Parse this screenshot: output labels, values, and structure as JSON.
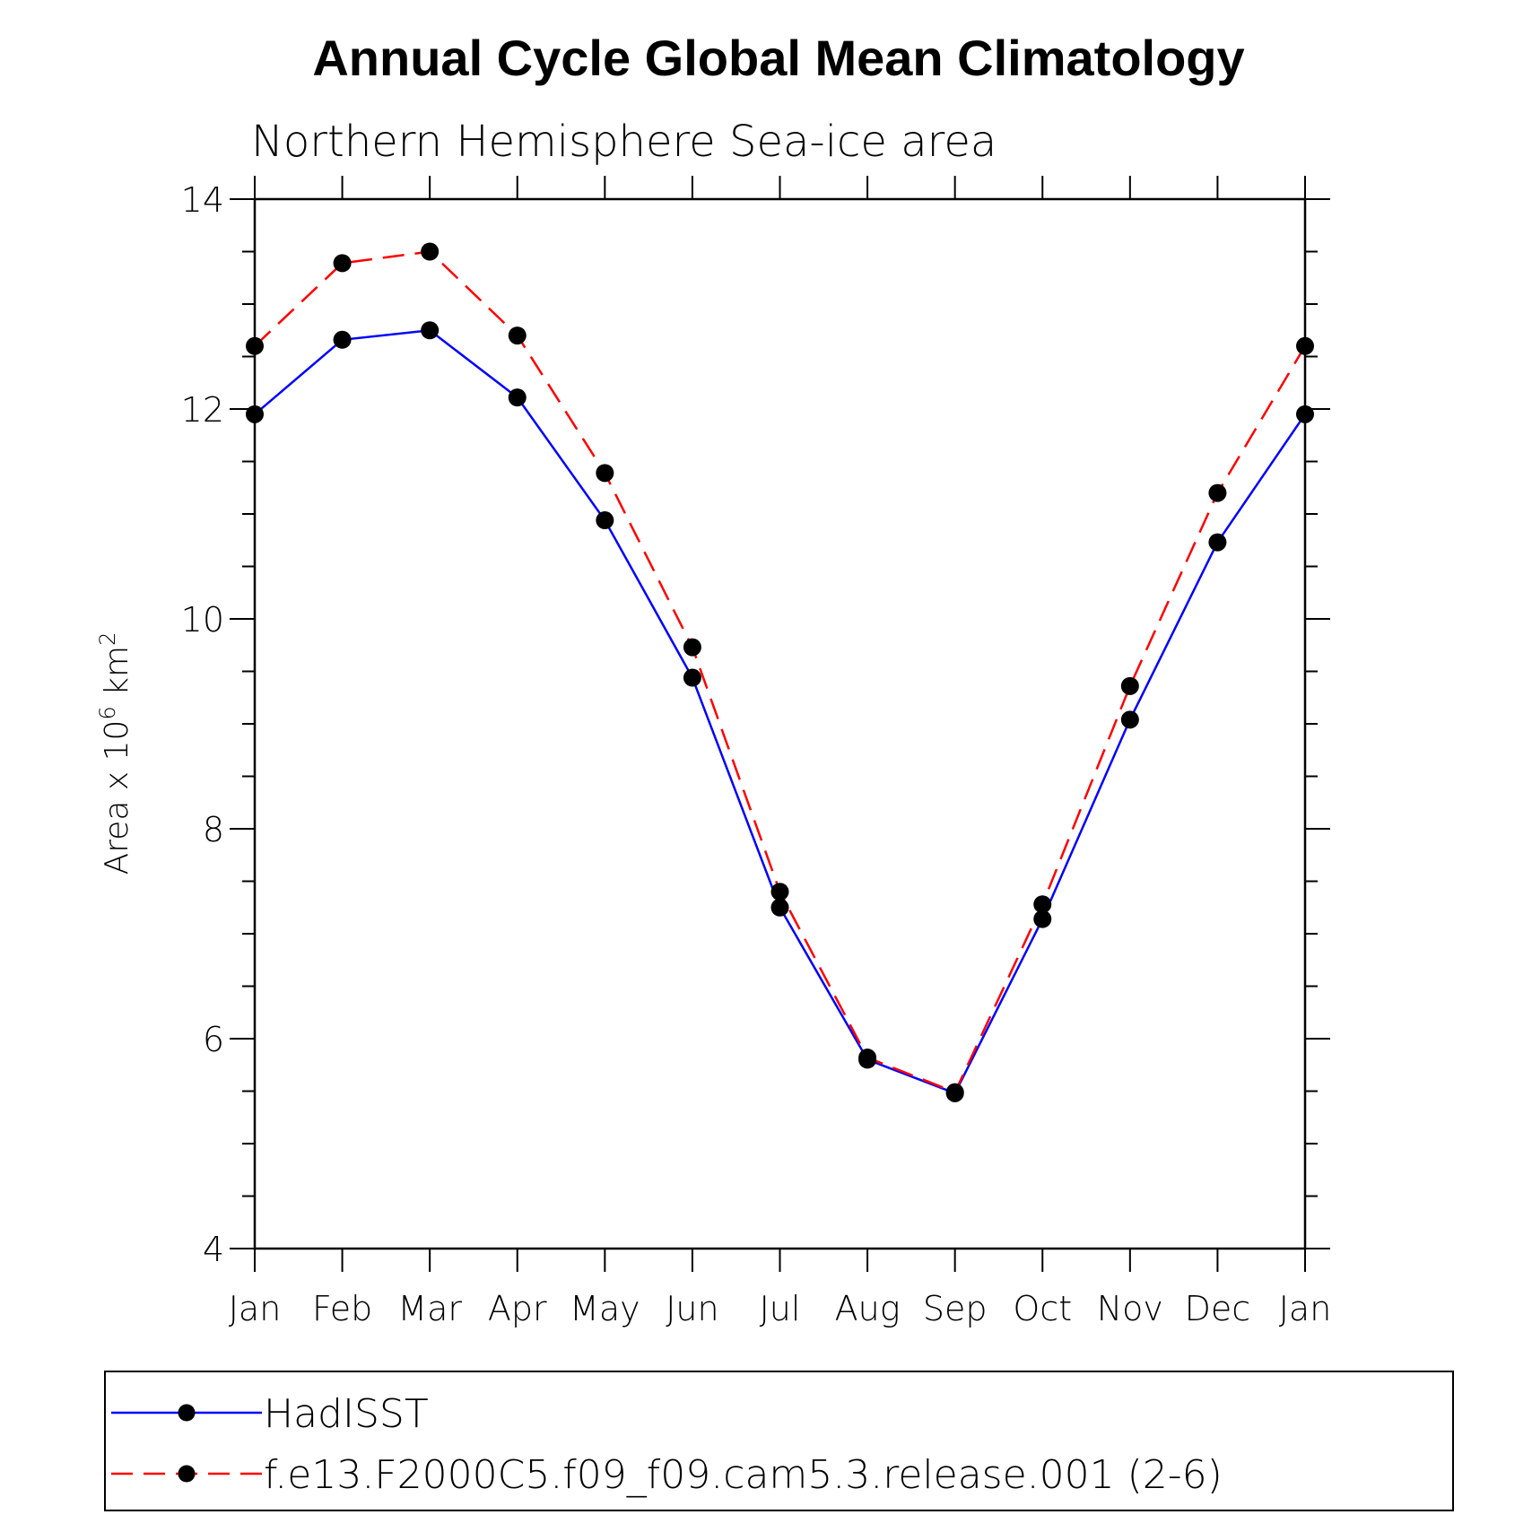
{
  "chart_data": {
    "type": "line",
    "title": "Annual Cycle Global Mean Climatology",
    "subtitle": "Northern Hemisphere Sea-ice area",
    "ylabel_prefix": "Area x 10",
    "ylabel_exp1": "6",
    "ylabel_mid": " km",
    "ylabel_exp2": "2",
    "ylim": [
      4,
      14
    ],
    "yticks": [
      4,
      6,
      8,
      10,
      12,
      14
    ],
    "ytick_labels": [
      "4",
      "6",
      "8",
      "10",
      "12",
      "14"
    ],
    "categories": [
      "Jan",
      "Feb",
      "Mar",
      "Apr",
      "May",
      "Jun",
      "Jul",
      "Aug",
      "Sep",
      "Oct",
      "Nov",
      "Dec",
      "Jan"
    ],
    "series": [
      {
        "name": "HadISST",
        "color": "#0000ff",
        "dash": "solid",
        "values": [
          11.95,
          12.66,
          12.75,
          12.11,
          10.94,
          9.44,
          7.25,
          5.8,
          5.48,
          7.14,
          9.04,
          10.73,
          11.95
        ]
      },
      {
        "name": "f.e13.F2000C5.f09_f09.cam5.3.release.001 (2-6)",
        "color": "#ff0000",
        "dash": "dashed",
        "values": [
          12.6,
          13.39,
          13.5,
          12.7,
          11.39,
          9.73,
          7.4,
          5.82,
          5.49,
          7.28,
          9.36,
          11.2,
          12.6
        ]
      }
    ],
    "grid": false,
    "legend_position": "bottom"
  }
}
